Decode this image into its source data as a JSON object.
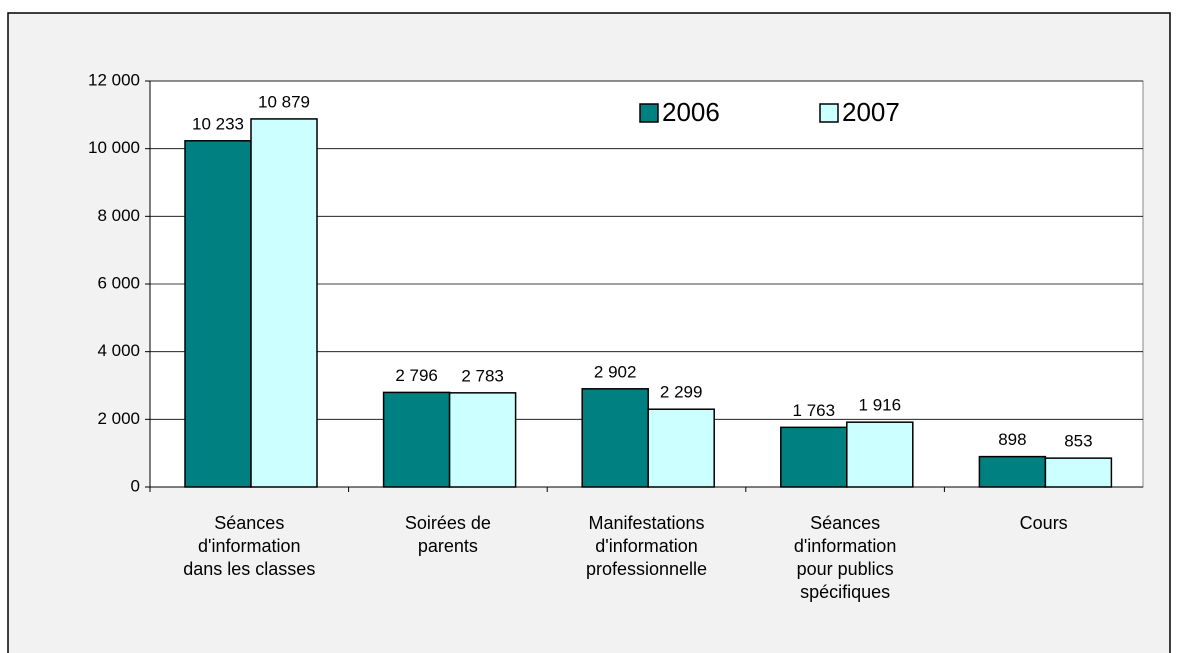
{
  "chart_data": {
    "type": "bar",
    "categories": [
      "Séances\nd'information\ndans les classes",
      "Soirées de\nparents",
      "Manifestations\nd'information\nprofessionnelle",
      "Séances\nd'information\npour publics\nspécifiques",
      "Cours"
    ],
    "series": [
      {
        "name": "2006",
        "color": "#008080",
        "values": [
          10233,
          2796,
          2902,
          1763,
          898
        ],
        "value_labels": [
          "10 233",
          "2 796",
          "2 902",
          "1 763",
          "898"
        ]
      },
      {
        "name": "2007",
        "color": "#ccffff",
        "values": [
          10879,
          2783,
          2299,
          1916,
          853
        ],
        "value_labels": [
          "10 879",
          "2 783",
          "2 299",
          "1 916",
          "853"
        ]
      }
    ],
    "ylim": [
      0,
      12000
    ],
    "yticks": [
      0,
      {
        "value": 2000,
        "label": "2 000"
      },
      {
        "value": 4000,
        "label": "4 000"
      },
      {
        "value": 6000,
        "label": "6 000"
      },
      {
        "value": 8000,
        "label": "8 000"
      },
      {
        "value": 10000,
        "label": "10 000"
      },
      {
        "value": 12000,
        "label": "12 000"
      }
    ],
    "grid": true,
    "legend": "top-right"
  }
}
